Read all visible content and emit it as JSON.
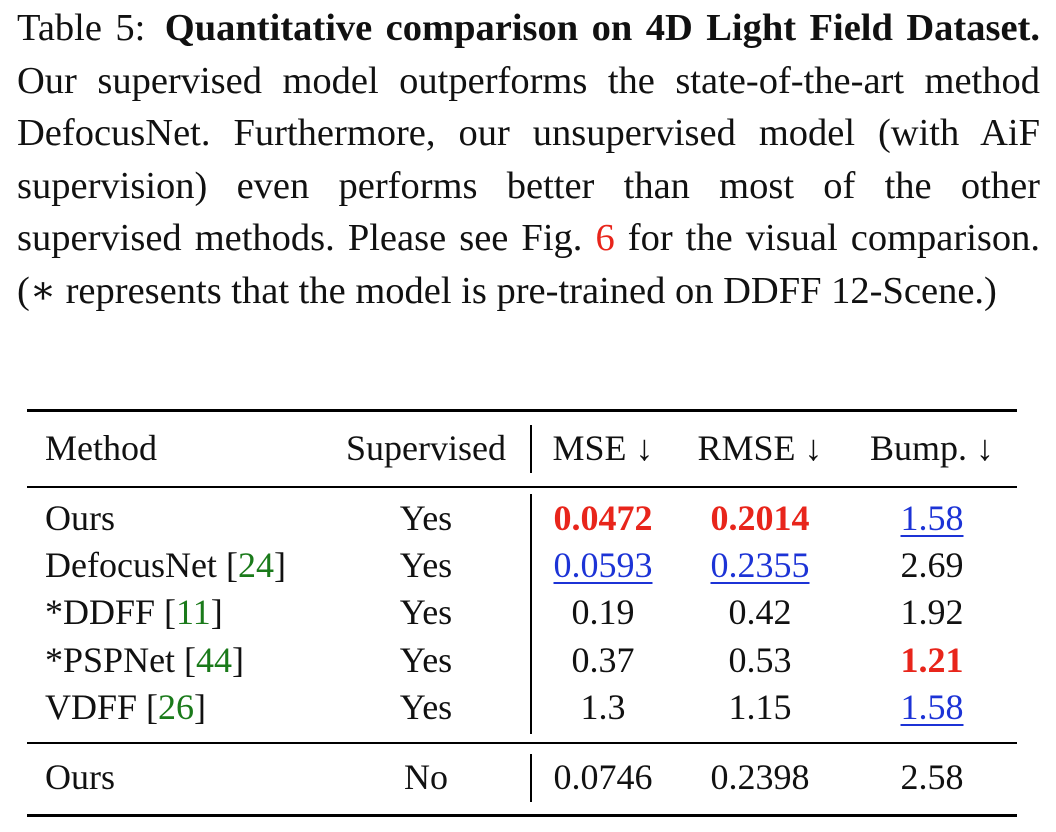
{
  "caption": {
    "label": "Table 5:",
    "title": "Quantitative comparison on 4D Light Field Dataset.",
    "sentence1": "Our supervised model outperforms the state-of-the-art method DefocusNet. Furthermore, our unsupervised model (with AiF supervision) even performs better than most of the other supervised methods. Please see Fig.",
    "fig_ref": "6",
    "sentence2": "for the visual comparison. (∗ represents that the model is pre-trained on DDFF 12-Scene.)"
  },
  "table": {
    "headers": {
      "method": "Method",
      "supervised": "Supervised",
      "mse": "MSE ↓",
      "rmse": "RMSE ↓",
      "bump": "Bump. ↓"
    },
    "rows": [
      {
        "method": "Ours",
        "cite": "",
        "supervised": "Yes",
        "mse": "0.0472",
        "rmse": "0.2014",
        "bump": "1.58"
      },
      {
        "method": "DefocusNet",
        "cite": "24",
        "supervised": "Yes",
        "mse": "0.0593",
        "rmse": "0.2355",
        "bump": "2.69"
      },
      {
        "method": "*DDFF",
        "cite": "11",
        "supervised": "Yes",
        "mse": "0.19",
        "rmse": "0.42",
        "bump": "1.92"
      },
      {
        "method": "*PSPNet",
        "cite": "44",
        "supervised": "Yes",
        "mse": "0.37",
        "rmse": "0.53",
        "bump": "1.21"
      },
      {
        "method": "VDFF",
        "cite": "26",
        "supervised": "Yes",
        "mse": "1.3",
        "rmse": "1.15",
        "bump": "1.58"
      },
      {
        "method": "Ours",
        "cite": "",
        "supervised": "No",
        "mse": "0.0746",
        "rmse": "0.2398",
        "bump": "2.58"
      }
    ],
    "highlight_colors": {
      "best": "#e8251b",
      "second": "#1c33d6",
      "citation": "#1a7a1a"
    }
  }
}
